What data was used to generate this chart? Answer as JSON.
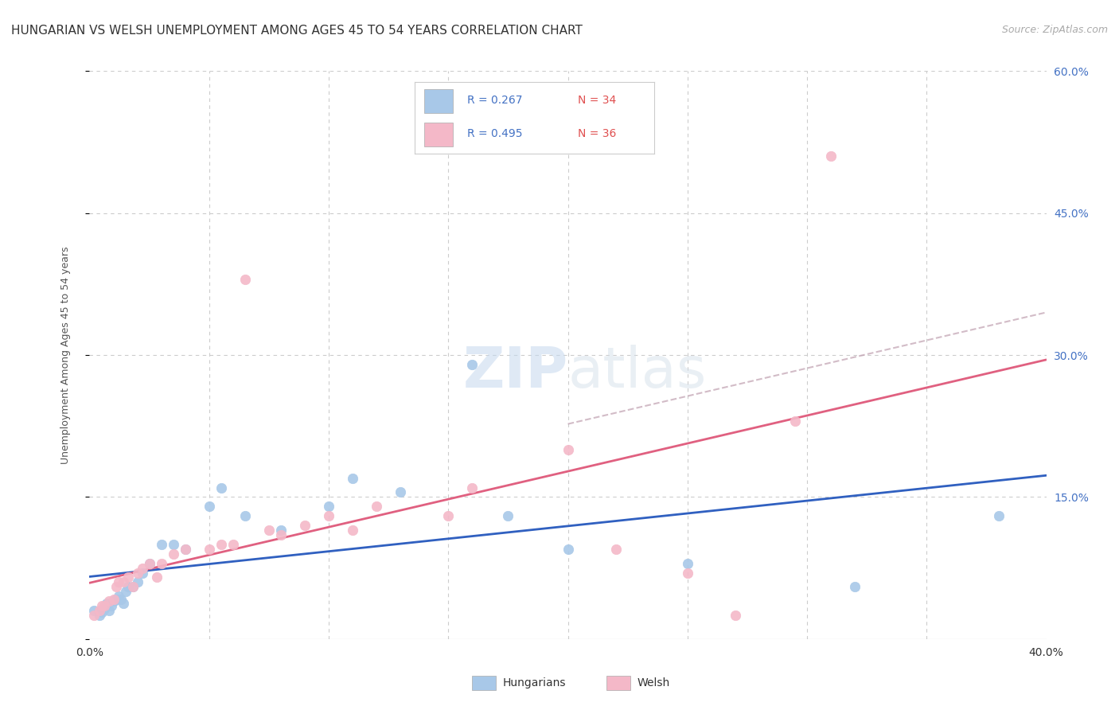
{
  "title": "HUNGARIAN VS WELSH UNEMPLOYMENT AMONG AGES 45 TO 54 YEARS CORRELATION CHART",
  "source": "Source: ZipAtlas.com",
  "ylabel": "Unemployment Among Ages 45 to 54 years",
  "xlim": [
    0.0,
    0.4
  ],
  "ylim": [
    0.0,
    0.6
  ],
  "hungarian_color": "#a8c8e8",
  "welsh_color": "#f4b8c8",
  "hungarian_trend_color": "#3060c0",
  "welsh_trend_color": "#e06080",
  "welsh_dashed_color": "#d0a0b0",
  "hungarian_r": 0.267,
  "hungarian_n": 34,
  "welsh_r": 0.495,
  "welsh_n": 36,
  "legend_label_hungarian": "Hungarians",
  "legend_label_welsh": "Welsh",
  "background_color": "#ffffff",
  "grid_color": "#cccccc",
  "title_fontsize": 11,
  "axis_label_fontsize": 9,
  "tick_fontsize": 10,
  "source_fontsize": 9,
  "watermark_zip": "ZIP",
  "watermark_atlas": "atlas",
  "r_color": "#4472c4",
  "n_color": "#e05050",
  "hungarian_x": [
    0.002,
    0.004,
    0.005,
    0.006,
    0.007,
    0.008,
    0.009,
    0.01,
    0.011,
    0.012,
    0.013,
    0.014,
    0.015,
    0.016,
    0.018,
    0.02,
    0.022,
    0.025,
    0.03,
    0.035,
    0.04,
    0.05,
    0.055,
    0.065,
    0.08,
    0.1,
    0.11,
    0.13,
    0.16,
    0.175,
    0.2,
    0.25,
    0.32,
    0.38
  ],
  "hungarian_y": [
    0.03,
    0.025,
    0.028,
    0.032,
    0.038,
    0.03,
    0.035,
    0.04,
    0.042,
    0.045,
    0.042,
    0.038,
    0.05,
    0.055,
    0.055,
    0.06,
    0.07,
    0.08,
    0.1,
    0.1,
    0.095,
    0.14,
    0.16,
    0.13,
    0.115,
    0.14,
    0.17,
    0.155,
    0.29,
    0.13,
    0.095,
    0.08,
    0.055,
    0.13
  ],
  "welsh_x": [
    0.002,
    0.004,
    0.005,
    0.006,
    0.008,
    0.01,
    0.011,
    0.012,
    0.014,
    0.016,
    0.018,
    0.02,
    0.022,
    0.025,
    0.028,
    0.03,
    0.035,
    0.04,
    0.05,
    0.055,
    0.06,
    0.065,
    0.075,
    0.08,
    0.09,
    0.1,
    0.11,
    0.12,
    0.15,
    0.16,
    0.2,
    0.22,
    0.25,
    0.27,
    0.295,
    0.31
  ],
  "welsh_y": [
    0.025,
    0.03,
    0.035,
    0.035,
    0.04,
    0.042,
    0.055,
    0.06,
    0.06,
    0.065,
    0.055,
    0.07,
    0.075,
    0.08,
    0.065,
    0.08,
    0.09,
    0.095,
    0.095,
    0.1,
    0.1,
    0.38,
    0.115,
    0.11,
    0.12,
    0.13,
    0.115,
    0.14,
    0.13,
    0.16,
    0.2,
    0.095,
    0.07,
    0.025,
    0.23,
    0.51
  ]
}
